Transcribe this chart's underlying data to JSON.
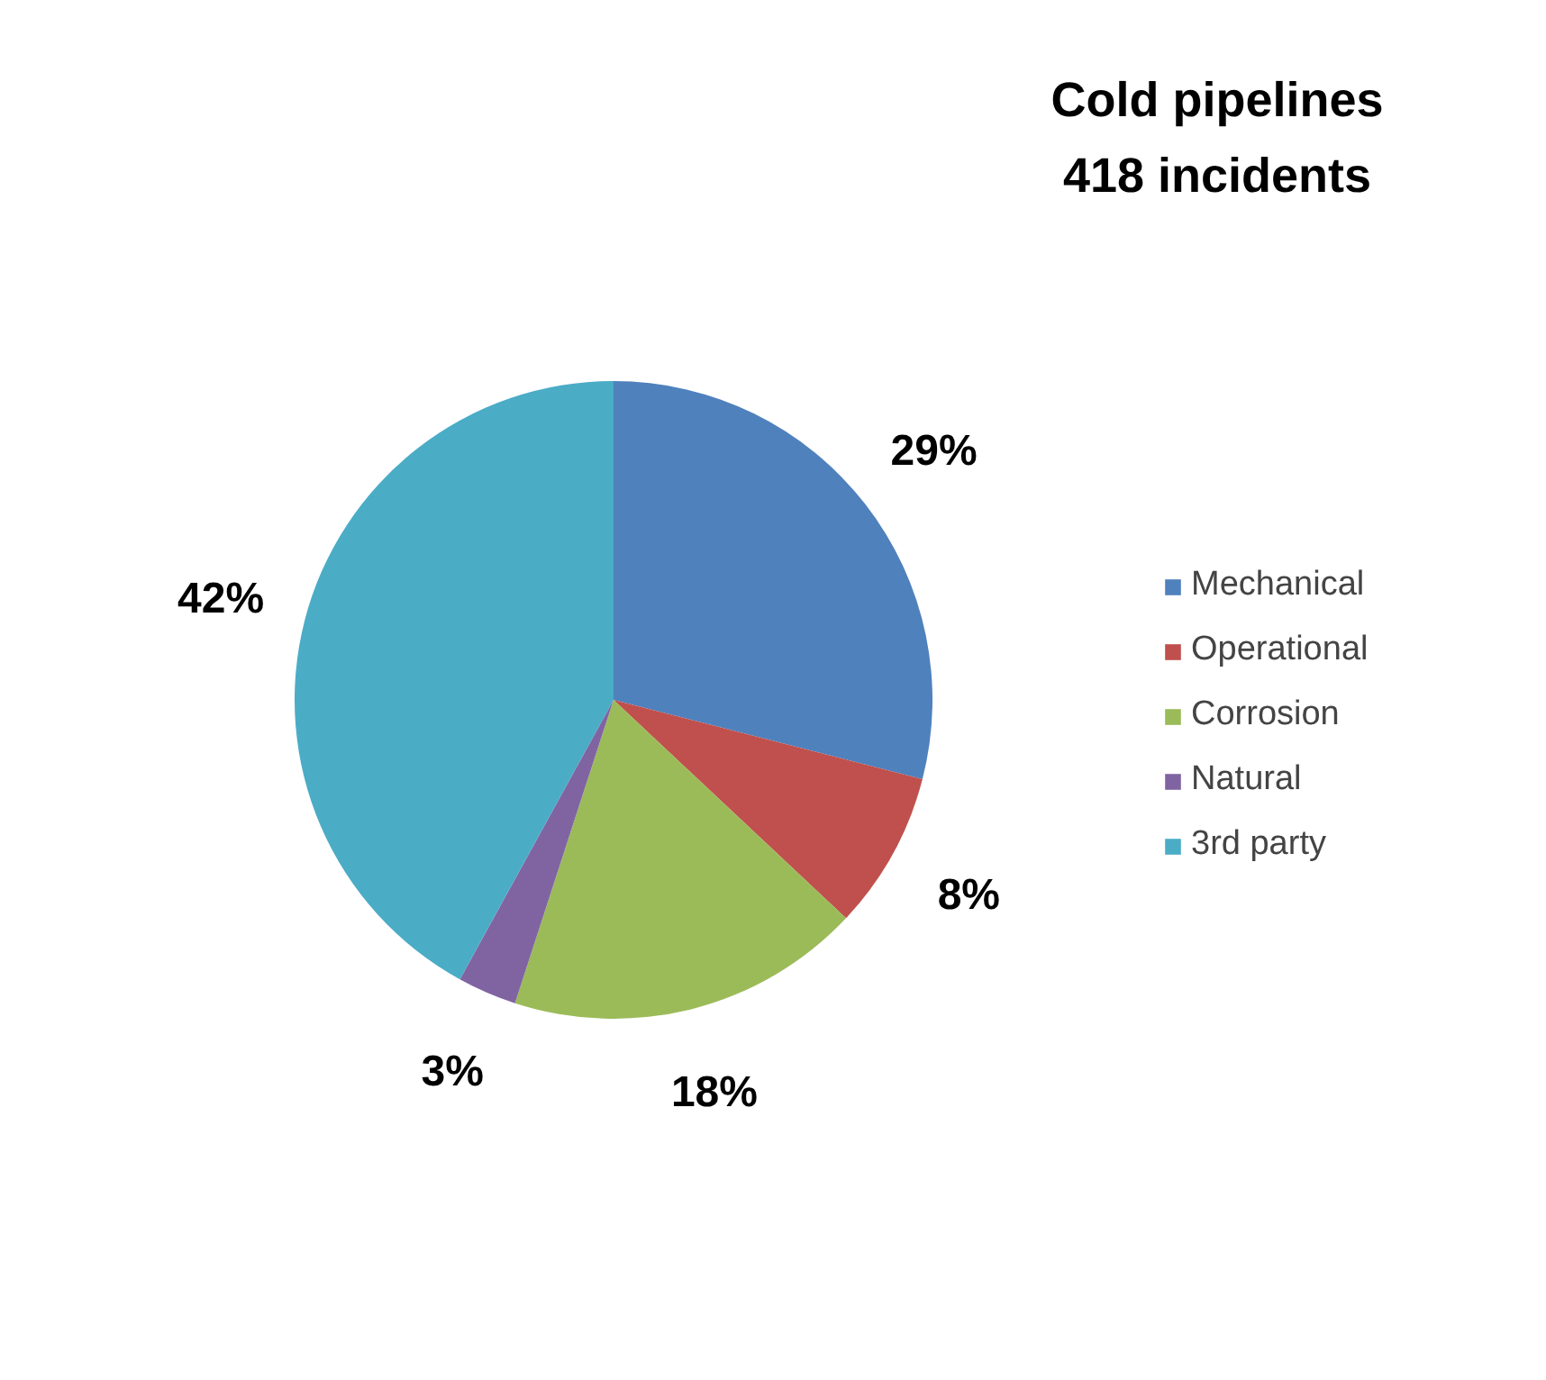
{
  "chart_data": {
    "type": "pie",
    "title": "Cold pipelines",
    "subtitle": "418 incidents",
    "categories": [
      "Mechanical",
      "Operational",
      "Corrosion",
      "Natural",
      "3rd party"
    ],
    "values": [
      29,
      8,
      18,
      3,
      42
    ],
    "colors": [
      "#4f81bd",
      "#c0504d",
      "#9bbb59",
      "#8064a2",
      "#4bacc6"
    ],
    "value_labels": [
      "29%",
      "8%",
      "18%",
      "3%",
      "42%"
    ],
    "legend": "right"
  }
}
